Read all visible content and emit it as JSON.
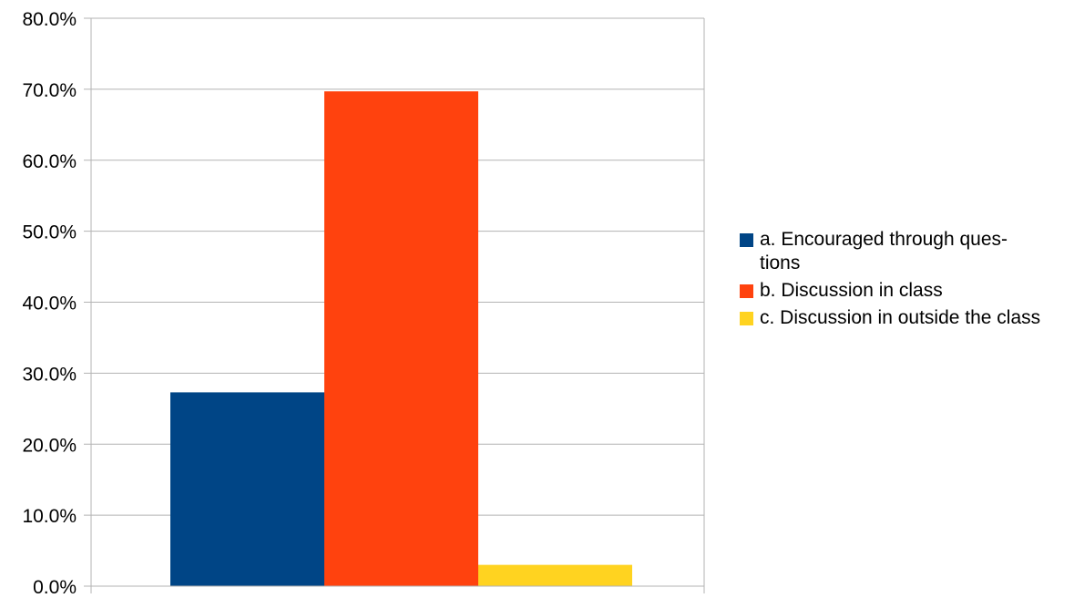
{
  "chart_data": {
    "type": "bar",
    "categories": [
      ""
    ],
    "series": [
      {
        "name": "a. Encouraged through ques-\ntions",
        "values": [
          27.3
        ],
        "color": "#004586"
      },
      {
        "name": "b. Discussion in class",
        "values": [
          69.7
        ],
        "color": "#ff420e"
      },
      {
        "name": "c. Discussion in outside the class",
        "values": [
          3.0
        ],
        "color": "#ffd320"
      }
    ],
    "title": "",
    "xlabel": "",
    "ylabel": "",
    "ylim": [
      0,
      80
    ],
    "yticks": [
      "0.0%",
      "10.0%",
      "20.0%",
      "30.0%",
      "40.0%",
      "50.0%",
      "60.0%",
      "70.0%",
      "80.0%"
    ],
    "grid": true,
    "legend": "right"
  },
  "legend": {
    "items": [
      {
        "label": "a. Encouraged through ques-\ntions",
        "color": "#004586"
      },
      {
        "label": "b. Discussion in class",
        "color": "#ff420e"
      },
      {
        "label": "c. Discussion in outside the class",
        "color": "#ffd320"
      }
    ]
  }
}
